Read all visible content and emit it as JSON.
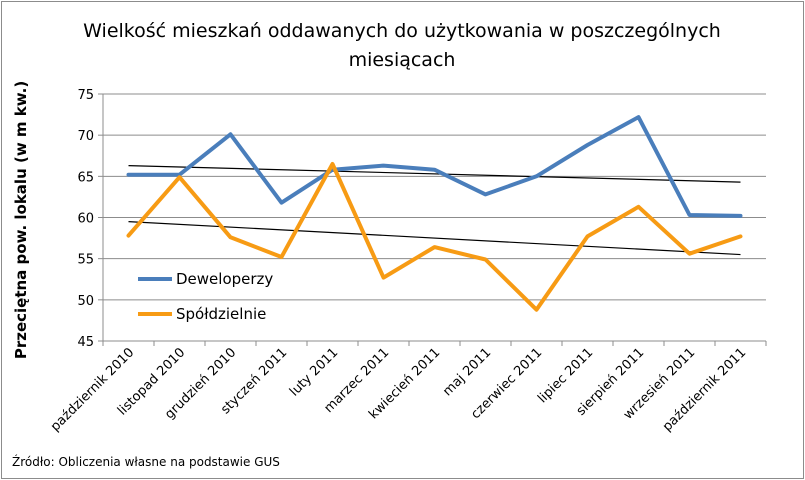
{
  "chart_data": {
    "type": "line",
    "title_lines": [
      "Wielkość mieszkań oddawanych do użytkowania  w poszczególnych",
      "miesiącach"
    ],
    "ylabel": "Przeciętna pow. lokalu (w m kw.)",
    "xlabel": "",
    "ylim": [
      45,
      75
    ],
    "yticks": [
      45,
      50,
      55,
      60,
      65,
      70,
      75
    ],
    "categories": [
      "październik 2010",
      "listopad 2010",
      "grudzień 2010",
      "styczeń 2011",
      "luty 2011",
      "marzec 2011",
      "kwiecień 2011",
      "maj 2011",
      "czerwiec 2011",
      "lipiec 2011",
      "sierpień 2011",
      "wrzesień 2011",
      "październik 2011"
    ],
    "series": [
      {
        "name": "Deweloperzy",
        "color": "#4a7ebb",
        "values": [
          65.2,
          65.2,
          70.1,
          61.8,
          65.8,
          66.3,
          65.8,
          62.8,
          65.0,
          68.8,
          72.2,
          60.3,
          60.2
        ]
      },
      {
        "name": "Spółdzielnie",
        "color": "#f79b14",
        "values": [
          57.8,
          64.9,
          57.6,
          55.2,
          66.5,
          52.7,
          56.4,
          54.9,
          48.8,
          57.7,
          61.3,
          55.6,
          57.7
        ]
      }
    ],
    "trendlines": [
      {
        "series": "Deweloperzy",
        "color": "#000000",
        "start": 66.3,
        "end": 64.3
      },
      {
        "series": "Spółdzielnie",
        "color": "#000000",
        "start": 59.5,
        "end": 55.5
      }
    ],
    "legend_position": "left-inside",
    "grid": "horizontal"
  },
  "source_note": "Źródło: Obliczenia własne na podstawie GUS"
}
